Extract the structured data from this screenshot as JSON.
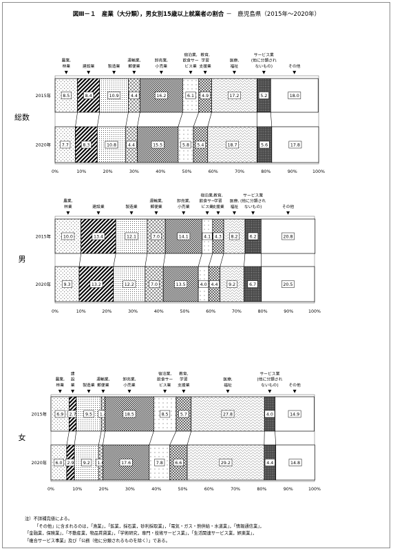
{
  "title": {
    "main": "図Ⅲ－１　産業（大分類），男女別15歳以上就業者の割合",
    "sub": "－　鹿児島県（2015年～2020年）"
  },
  "legend_labels": [
    [
      "農業,",
      "林業"
    ],
    [
      "建設業"
    ],
    [
      "製造業"
    ],
    [
      "運輸業,",
      "郵便業"
    ],
    [
      "卸売業,",
      "小売業"
    ],
    [
      "宿泊業,",
      "飲食サー",
      "ビス業"
    ],
    [
      "教育,",
      "学習",
      "支援業"
    ],
    [
      "医療,",
      "福祉"
    ],
    [
      "サービス業",
      "(他に分類され",
      "ないもの)"
    ],
    [
      "その他"
    ]
  ],
  "women_legend_labels": [
    [
      "農業,",
      "林業"
    ],
    [
      "建",
      "設",
      "業"
    ],
    [
      "製造業"
    ],
    [
      "運輸業,",
      "郵便業"
    ],
    [
      "卸売業,",
      "小売業"
    ],
    [
      "宿泊業,",
      "飲食サー",
      "ビス業"
    ],
    [
      "教育,",
      "学習",
      "支援業"
    ],
    [
      "医療,",
      "福祉"
    ],
    [
      "サービス業",
      "(他に分類され",
      "ないもの)"
    ],
    [
      "その他"
    ]
  ],
  "x_ticks": [
    "0%",
    "10%",
    "20%",
    "30%",
    "40%",
    "50%",
    "60%",
    "70%",
    "80%",
    "90%",
    "100%"
  ],
  "chart_data": [
    {
      "type": "bar",
      "title": "総数",
      "categories": [
        "2015年",
        "2020年"
      ],
      "series": [
        {
          "name": "農業，林業",
          "values": [
            8.5,
            7.7
          ]
        },
        {
          "name": "建設業",
          "values": [
            8.4,
            8.3
          ]
        },
        {
          "name": "製造業",
          "values": [
            10.9,
            10.8
          ]
        },
        {
          "name": "運輸業，郵便業",
          "values": [
            4.4,
            4.4
          ]
        },
        {
          "name": "卸売業，小売業",
          "values": [
            16.2,
            15.5
          ]
        },
        {
          "name": "宿泊業，飲食サービス業",
          "values": [
            6.1,
            5.8
          ]
        },
        {
          "name": "教育，学習支援業",
          "values": [
            4.9,
            5.4
          ]
        },
        {
          "name": "医療，福祉",
          "values": [
            17.2,
            18.7
          ]
        },
        {
          "name": "サービス業（他に分類されないもの）",
          "values": [
            5.2,
            5.6
          ]
        },
        {
          "name": "その他",
          "values": [
            18.0,
            17.8
          ]
        }
      ],
      "xlim": [
        0,
        100
      ]
    },
    {
      "type": "bar",
      "title": "男",
      "categories": [
        "2015年",
        "2020年"
      ],
      "series": [
        {
          "name": "農業，林業",
          "values": [
            10.0,
            9.3
          ]
        },
        {
          "name": "建設業",
          "values": [
            13.4,
            13.2
          ]
        },
        {
          "name": "製造業",
          "values": [
            12.1,
            12.2
          ]
        },
        {
          "name": "運輸業，郵便業",
          "values": [
            7.0,
            7.0
          ]
        },
        {
          "name": "卸売業，小売業",
          "values": [
            14.1,
            13.5
          ]
        },
        {
          "name": "宿泊業，飲食サービス業",
          "values": [
            4.1,
            4.0
          ]
        },
        {
          "name": "教育，学習支援業",
          "values": [
            4.3,
            4.4
          ]
        },
        {
          "name": "医療，福祉",
          "values": [
            8.2,
            9.2
          ]
        },
        {
          "name": "サービス業（他に分類されないもの）",
          "values": [
            6.2,
            6.7
          ]
        },
        {
          "name": "その他",
          "values": [
            20.8,
            20.5
          ]
        }
      ],
      "xlim": [
        0,
        100
      ]
    },
    {
      "type": "bar",
      "title": "女",
      "categories": [
        "2015年",
        "2020年"
      ],
      "series": [
        {
          "name": "農業，林業",
          "values": [
            6.9,
            6.0
          ]
        },
        {
          "name": "建設業",
          "values": [
            2.7,
            2.9
          ]
        },
        {
          "name": "製造業",
          "values": [
            9.5,
            9.2
          ]
        },
        {
          "name": "運輸業，郵便業",
          "values": [
            1.4,
            1.6
          ]
        },
        {
          "name": "卸売業，小売業",
          "values": [
            18.5,
            17.6
          ]
        },
        {
          "name": "宿泊業，飲食サービス業",
          "values": [
            8.5,
            7.8
          ]
        },
        {
          "name": "教育，学習支援業",
          "values": [
            5.7,
            6.6
          ]
        },
        {
          "name": "医療，福祉",
          "values": [
            27.8,
            29.2
          ]
        },
        {
          "name": "サービス業（他に分類されないもの）",
          "values": [
            4.0,
            4.4
          ]
        },
        {
          "name": "その他",
          "values": [
            14.9,
            14.8
          ]
        }
      ],
      "xlim": [
        0,
        100
      ]
    }
  ],
  "notes": [
    "注）不詳補完値による。",
    "「その他」に含まれるのは，「漁業」，「鉱業，採石業，砂利採取業」，「電気・ガス・熱供給・水道業」，「情報通信業」，",
    "「金融業，保険業」，「不動産業，物品賃貸業」，「学術研究，専門・技術サービス業」，「生活関連サービス業，娯楽業」，",
    "「複合サービス事業」及び「公務（他に分類されるものを除く）」である。"
  ]
}
